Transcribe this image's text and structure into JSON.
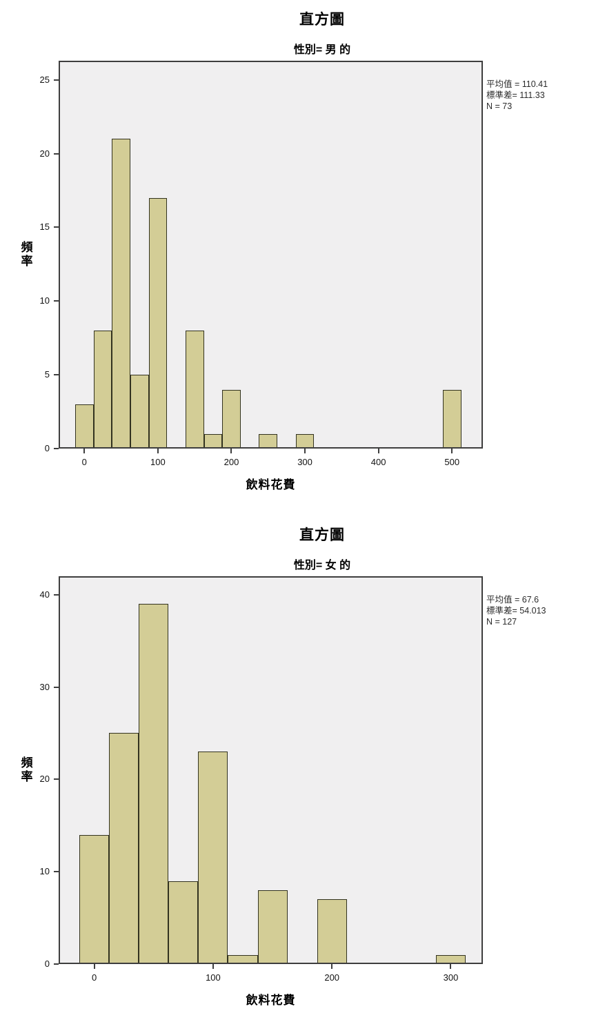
{
  "chart_data": [
    {
      "type": "histogram",
      "title": "直方圖",
      "subtitle": "性別= 男 的",
      "xlabel": "飲料花費",
      "ylabel": "頻率",
      "stats": [
        "平均值 = 110.41",
        "標準差= 111.33",
        "N = 73"
      ],
      "bin_width": 25,
      "bin_centers": [
        0,
        25,
        50,
        75,
        100,
        150,
        175,
        200,
        250,
        300,
        500
      ],
      "values": [
        3,
        8,
        21,
        5,
        17,
        8,
        1,
        4,
        1,
        1,
        4
      ],
      "x_ticks": [
        0,
        100,
        200,
        300,
        400,
        500
      ],
      "y_ticks": [
        0,
        5,
        10,
        15,
        20,
        25
      ],
      "x_domain": [
        -35,
        542
      ],
      "y_domain": [
        0,
        26.3
      ],
      "grid": false,
      "legend_position": "none",
      "colors": {
        "bar_fill": "#d3cd96",
        "bar_stroke": "#32321f",
        "plot_bg": "#f0eff0",
        "plot_border": "#3e3e3e"
      }
    },
    {
      "type": "histogram",
      "title": "直方圖",
      "subtitle": "性別= 女 的",
      "xlabel": "飲料花費",
      "ylabel": "頻率",
      "stats": [
        "平均值 = 67.6",
        "標準差= 54.013",
        "N = 127"
      ],
      "bin_width": 25,
      "bin_centers": [
        0,
        25,
        50,
        75,
        100,
        125,
        150,
        200,
        300
      ],
      "values": [
        14,
        25,
        39,
        9,
        23,
        1,
        8,
        7,
        1
      ],
      "x_ticks": [
        0,
        100,
        200,
        300
      ],
      "y_ticks": [
        0,
        10,
        20,
        30,
        40
      ],
      "x_domain": [
        -30,
        327
      ],
      "y_domain": [
        0,
        42
      ],
      "grid": false,
      "legend_position": "none",
      "colors": {
        "bar_fill": "#d3cd96",
        "bar_stroke": "#32321f",
        "plot_bg": "#f0eff0",
        "plot_border": "#3e3e3e"
      }
    }
  ]
}
